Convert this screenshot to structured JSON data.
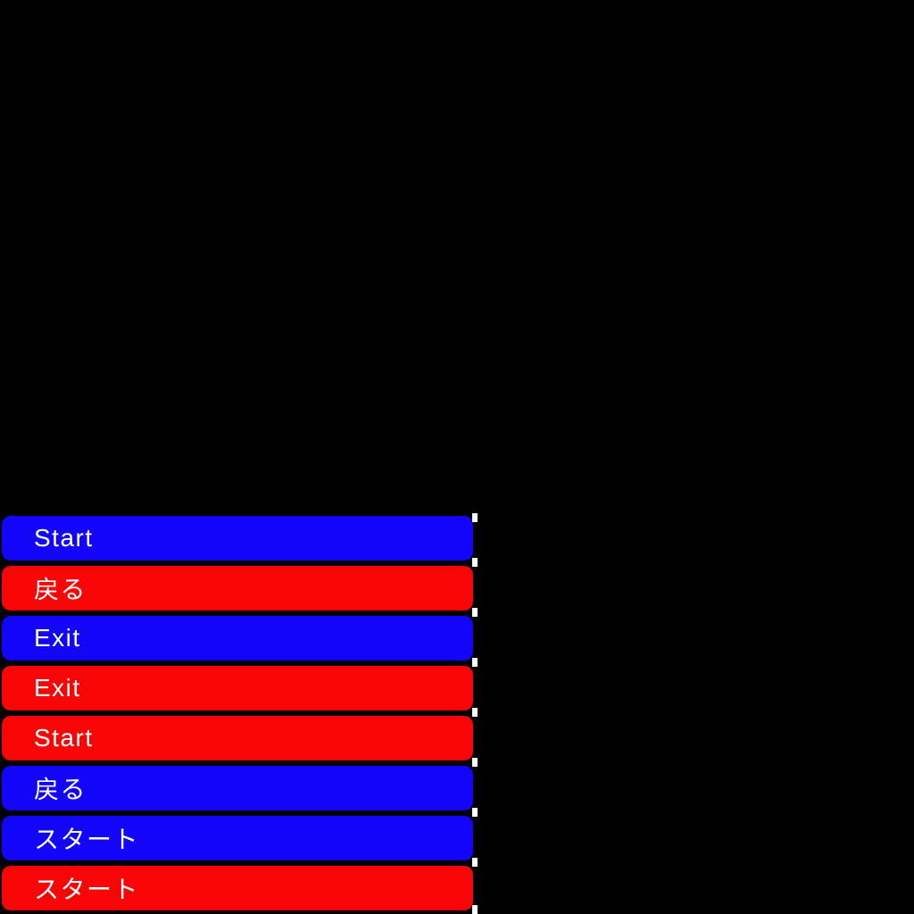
{
  "screen": {
    "background": "#000000"
  },
  "colors": {
    "blue": "#1205fa",
    "red": "#fa0505",
    "label_text": "#ffffff",
    "dash": "#ffffff"
  },
  "menu": {
    "buttons": [
      {
        "label": "Start",
        "color": "blue"
      },
      {
        "label": "戻る",
        "color": "red"
      },
      {
        "label": "Exit",
        "color": "blue"
      },
      {
        "label": "Exit",
        "color": "red"
      },
      {
        "label": "Start",
        "color": "red"
      },
      {
        "label": "戻る",
        "color": "blue"
      },
      {
        "label": "スタート",
        "color": "blue"
      },
      {
        "label": "スタート",
        "color": "red"
      }
    ]
  }
}
